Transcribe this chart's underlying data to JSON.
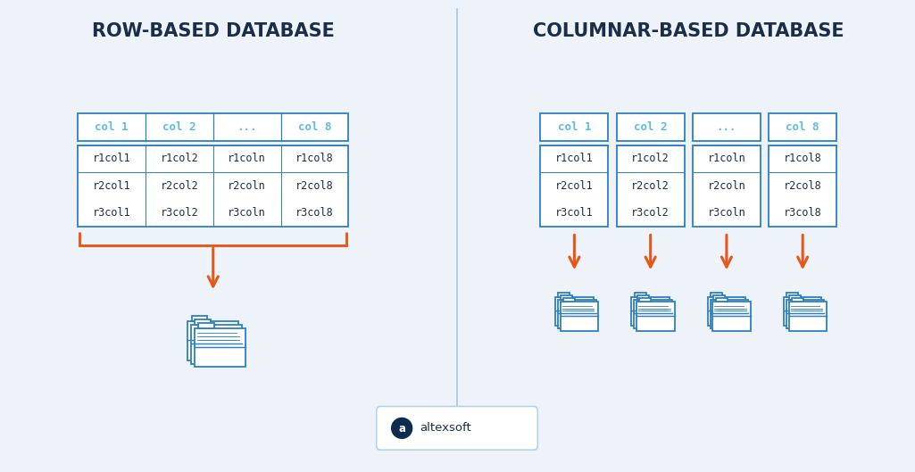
{
  "bg_color": "#edf3f8",
  "title_left": "ROW-BASED DATABASE",
  "title_right": "COLUMNAR-BASED DATABASE",
  "title_color": "#1a2e4a",
  "title_fontsize": 15,
  "col_headers": [
    "col 1",
    "col 2",
    "...",
    "col 8"
  ],
  "col_header_color": "#5bbde4",
  "table_border_color": "#2e7fc1",
  "data_rows": [
    [
      "r1col1",
      "r1col2",
      "r1coln",
      "r1col8"
    ],
    [
      "r2col1",
      "r2col2",
      "r2coln",
      "r2col8"
    ],
    [
      "r3col1",
      "r3col2",
      "r3coln",
      "r3col8"
    ]
  ],
  "cell_text_color": "#1a2e4a",
  "arrow_color": "#e8571a",
  "divider_color": "#b0cfe8",
  "logo_text": "altexsoft",
  "logo_border_color": "#b0cfe8",
  "logo_icon_color": "#0d2d4e",
  "logo_text_color": "#1a2e4a",
  "folder_color": "#2e7fc1",
  "folder_bg": "#ffffff"
}
